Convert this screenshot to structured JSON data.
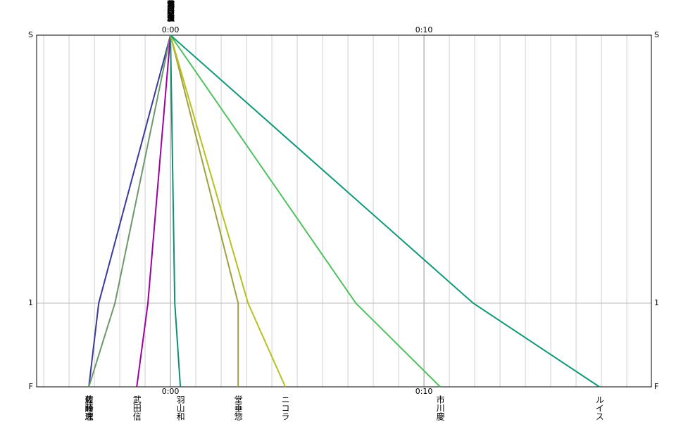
{
  "chart_data": {
    "type": "line",
    "xlim": [
      -5.28,
      18.97
    ],
    "xticks": [
      {
        "value": 0,
        "label": "0:00"
      },
      {
        "value": 10,
        "label": "0:10"
      }
    ],
    "xminor": [
      -5,
      -4,
      -3,
      -2,
      -1,
      0,
      1,
      2,
      3,
      4,
      5,
      6,
      7,
      8,
      9,
      10,
      11,
      12,
      13,
      14,
      15,
      16,
      17,
      18
    ],
    "ylim": [
      0,
      1
    ],
    "yticks": [
      {
        "value": 0,
        "label": "S"
      },
      {
        "value": 0.762,
        "label": "1"
      },
      {
        "value": 1,
        "label": "F"
      }
    ],
    "grid": true,
    "series": [
      {
        "name": "佐藤恵",
        "color": "#3a3a9a",
        "x": [
          0,
          -2.83,
          -3.22
        ],
        "values": [
          0,
          0.762,
          1
        ]
      },
      {
        "name": "藤崎理",
        "color": "#6a9a6a",
        "x": [
          0,
          -2.19,
          -3.22
        ],
        "values": [
          0,
          0.762,
          1
        ]
      },
      {
        "name": "武田信",
        "color": "#a000a0",
        "x": [
          0,
          -0.89,
          -1.33
        ],
        "values": [
          0,
          0.762,
          1
        ]
      },
      {
        "name": "羽山和",
        "color": "#109070",
        "x": [
          0,
          0.17,
          0.39
        ],
        "values": [
          0,
          0.762,
          1
        ]
      },
      {
        "name": "堂垂惣",
        "color": "#a0a040",
        "x": [
          0,
          2.67,
          2.67
        ],
        "values": [
          0,
          0.762,
          1
        ]
      },
      {
        "name": "ニコラ",
        "color": "#b8c020",
        "x": [
          0,
          3.06,
          4.53
        ],
        "values": [
          0,
          0.762,
          1
        ]
      },
      {
        "name": "市川慶",
        "color": "#50c060",
        "x": [
          0,
          7.31,
          10.64
        ],
        "values": [
          0,
          0.762,
          1
        ]
      },
      {
        "name": "ルイス",
        "color": "#109878",
        "x": [
          0,
          11.94,
          16.92
        ],
        "values": [
          0,
          0.762,
          1
        ]
      }
    ]
  }
}
